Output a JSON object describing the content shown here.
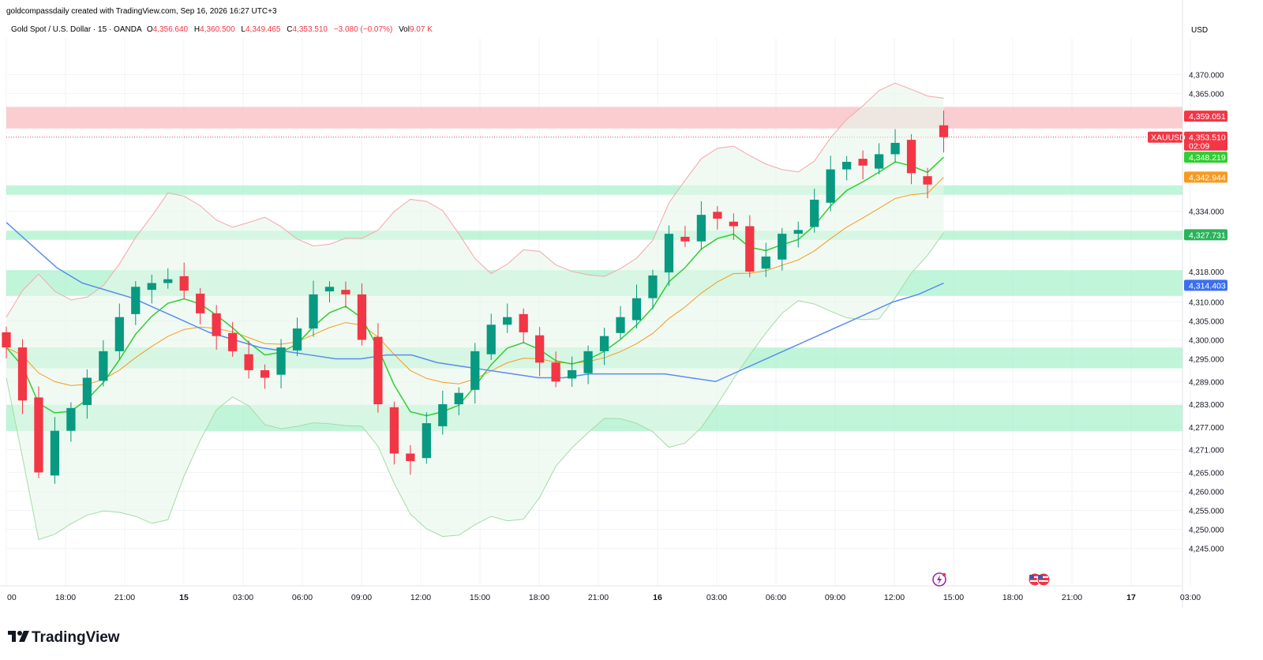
{
  "header": {
    "attribution": "goldcompassdaily created with TradingView.com, Sep 16, 2026 16:27 UTC+3",
    "symbol_line": "Gold Spot / U.S. Dollar · 15 · OANDA",
    "o_label": "O",
    "o_value": "4,356.640",
    "h_label": "H",
    "h_value": "4,360.500",
    "l_label": "L",
    "l_value": "4,349.465",
    "c_label": "C",
    "c_value": "4,353.510",
    "change": "−3.080 (−0.07%)",
    "vol_label": "Vol",
    "vol_value": "9.07 K"
  },
  "currency": "USD",
  "brand": "TradingView",
  "colors": {
    "up": "#089981",
    "down": "#f23645",
    "supply_zone": "#f7b3b8",
    "demand_zone": "#9ff0c6",
    "ema_fast": "#32cd32",
    "ema_slow": "#f89a1f",
    "sma_long": "#5b8def",
    "band_line": "#f5a6ac",
    "band_line_lower": "#a5dba5"
  },
  "chart_data": {
    "type": "candlestick",
    "symbol": "XAUUSD",
    "timeframe": "15",
    "ylim": [
      4240.5,
      4377
    ],
    "y_ticks": [
      4245,
      4250,
      4255,
      4260,
      4265,
      4271,
      4277,
      4283,
      4289,
      4295,
      4300,
      4305,
      4310,
      4318,
      4334,
      4365,
      4370
    ],
    "y_tick_labels": [
      "4,245.000",
      "4,250.000",
      "4,255.000",
      "4,260.000",
      "4,265.000",
      "4,271.000",
      "4,277.000",
      "4,283.000",
      "4,289.000",
      "4,295.000",
      "4,300.000",
      "4,305.000",
      "4,310.000",
      "4,318.000",
      "4,334.000",
      "4,365.000",
      "4,370.000"
    ],
    "x_ticks": [
      {
        "label": "00",
        "bold": false,
        "bar": 0
      },
      {
        "label": "18:00",
        "bold": false,
        "bar": 6
      },
      {
        "label": "21:00",
        "bold": false,
        "bar": 12
      },
      {
        "label": "15",
        "bold": true,
        "bar": 18
      },
      {
        "label": "03:00",
        "bold": false,
        "bar": 24
      },
      {
        "label": "06:00",
        "bold": false,
        "bar": 30
      },
      {
        "label": "09:00",
        "bold": false,
        "bar": 36
      },
      {
        "label": "12:00",
        "bold": false,
        "bar": 42
      },
      {
        "label": "15:00",
        "bold": false,
        "bar": 48
      },
      {
        "label": "18:00",
        "bold": false,
        "bar": 54
      },
      {
        "label": "21:00",
        "bold": false,
        "bar": 60
      },
      {
        "label": "16",
        "bold": true,
        "bar": 66
      },
      {
        "label": "03:00",
        "bold": false,
        "bar": 72
      },
      {
        "label": "06:00",
        "bold": false,
        "bar": 78
      },
      {
        "label": "09:00",
        "bold": false,
        "bar": 84
      },
      {
        "label": "12:00",
        "bold": false,
        "bar": 90
      },
      {
        "label": "15:00",
        "bold": false,
        "bar": 96
      },
      {
        "label": "18:00",
        "bold": false,
        "bar": 102
      },
      {
        "label": "21:00",
        "bold": false,
        "bar": 108
      },
      {
        "label": "17",
        "bold": true,
        "bar": 114
      },
      {
        "label": "03:00",
        "bold": false,
        "bar": 120
      }
    ],
    "closes": [
      4298,
      4284,
      4265,
      4276,
      4282,
      4290,
      4297,
      4306,
      4314,
      4315,
      4316,
      4313,
      4307,
      4301,
      4297,
      4292,
      4290,
      4298,
      4303,
      4312,
      4314,
      4312,
      4300,
      4283,
      4270,
      4268,
      4278,
      4283,
      4286,
      4297,
      4304,
      4306,
      4302,
      4294,
      4289,
      4292,
      4297,
      4301,
      4306,
      4311,
      4317,
      4328,
      4326,
      4333,
      4332,
      4330,
      4318,
      4322,
      4328,
      4329,
      4337,
      4345,
      4347,
      4346,
      4349,
      4352,
      4344,
      4341,
      4353.51
    ],
    "sma_long": [
      4331,
      4325,
      4319,
      4315,
      4313,
      4311,
      4308,
      4305,
      4302,
      4300,
      4298,
      4297,
      4296,
      4295,
      4295,
      4296,
      4296,
      4294,
      4293,
      4292,
      4291,
      4290,
      4290,
      4291,
      4291,
      4291,
      4291,
      4290,
      4289,
      4292,
      4295,
      4298,
      4301,
      4304,
      4307,
      4310,
      4312,
      4315
    ],
    "ema_fast_last": 4348.219,
    "ema_slow_last": 4342.944,
    "sma_last": 4314.403,
    "supply_zone": [
      4355.8,
      4361.5
    ],
    "demand_zones": [
      [
        4338.3,
        4340.8
      ],
      [
        4326.4,
        4328.8
      ],
      [
        4311.6,
        4318.4
      ],
      [
        4292.5,
        4298
      ],
      [
        4275.9,
        4282.8
      ]
    ],
    "current_price_line": 4353.51,
    "price_labels": [
      {
        "text": "4,359.051",
        "value": 4359.051,
        "color": "#f23645"
      },
      {
        "text": "4,353.510",
        "value": 4353.51,
        "color": "#f23645",
        "sub": "02:09",
        "tag": "XAUUSD"
      },
      {
        "text": "4,348.219",
        "value": 4348.219,
        "color": "#32cd32"
      },
      {
        "text": "4,342.944",
        "value": 4342.944,
        "color": "#f89a1f"
      },
      {
        "text": "4,327.731",
        "value": 4327.731,
        "color": "#29b35a"
      },
      {
        "text": "4,314.403",
        "value": 4314.403,
        "color": "#3b6ff0"
      }
    ]
  }
}
